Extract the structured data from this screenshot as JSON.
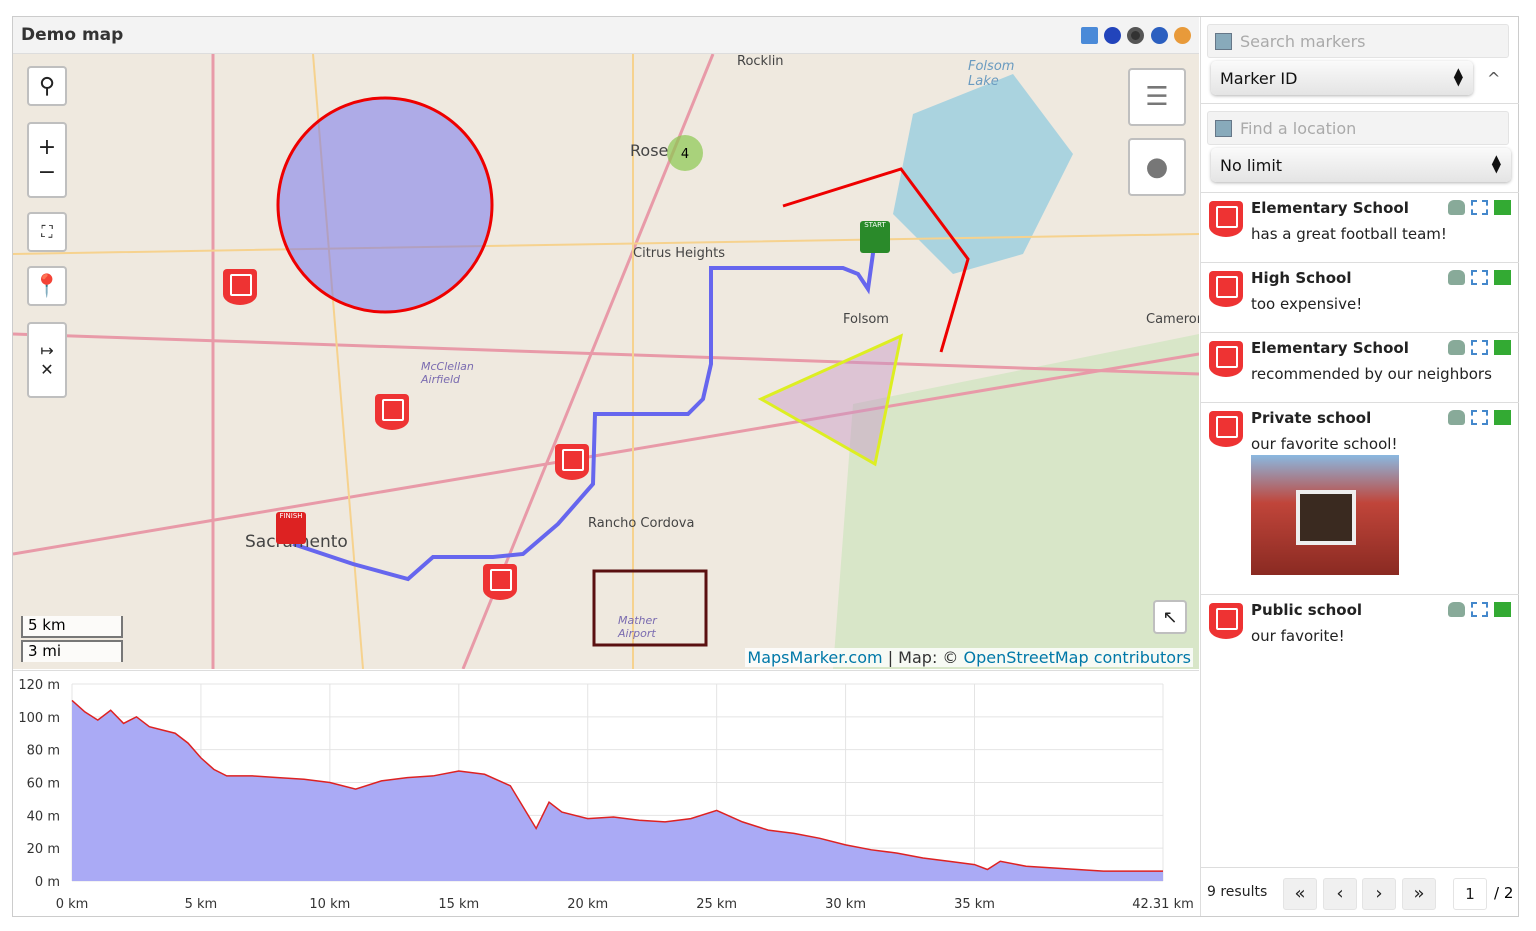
{
  "header": {
    "title": "Demo map",
    "icons": [
      "fullscreen-icon",
      "gpx-icon",
      "kml-icon",
      "google-earth-icon",
      "georss-icon"
    ]
  },
  "map": {
    "places": [
      "Rocklin",
      "Rose",
      "Citrus Heights",
      "Folsom",
      "Folsom Lake",
      "Cameron",
      "McClellan Airfield",
      "Rancho Cordova",
      "Sacramento",
      "Mather Airport"
    ],
    "cluster_count": "4",
    "scale": {
      "metric": "5 km",
      "imperial": "3 mi"
    },
    "attribution": {
      "brand": "MapsMarker.com",
      "sep": " | Map: © ",
      "osm": "OpenStreetMap contributors"
    },
    "route_markers": {
      "start": "START",
      "finish": "FINISH"
    },
    "colors": {
      "route": "#6666ee",
      "circle": "#e00000",
      "triangle": "#ddee22",
      "marker": "#e33333"
    }
  },
  "sidebar": {
    "search_placeholder": "Search markers",
    "sort_select": "Marker ID",
    "location_placeholder": "Find a location",
    "radius_select": "No limit",
    "items": [
      {
        "title": "Elementary School",
        "desc": "has a great football team!"
      },
      {
        "title": "High School",
        "desc": "too expensive!"
      },
      {
        "title": "Elementary School",
        "desc": "recommended by our neighbors"
      },
      {
        "title": "Private school",
        "desc": "our favorite school!"
      },
      {
        "title": "Public school",
        "desc": "our favorite!"
      }
    ],
    "results": "9 results",
    "pager": {
      "first": "«",
      "prev": "‹",
      "next": "›",
      "last": "»",
      "page": "1",
      "total": "/ 2"
    }
  },
  "chart_data": {
    "type": "area",
    "xlabel": "",
    "ylabel": "",
    "x_ticks": [
      "0 km",
      "5 km",
      "10 km",
      "15 km",
      "20 km",
      "25 km",
      "30 km",
      "35 km",
      "42.31 km"
    ],
    "y_ticks": [
      "0 m",
      "20 m",
      "40 m",
      "60 m",
      "80 m",
      "100 m",
      "120 m"
    ],
    "xlim": [
      0,
      42.31
    ],
    "ylim": [
      0,
      120
    ],
    "x": [
      0,
      0.5,
      1,
      1.5,
      2,
      2.5,
      3,
      3.5,
      4,
      4.5,
      5,
      5.5,
      6,
      7,
      8,
      9,
      10,
      11,
      12,
      13,
      14,
      15,
      16,
      17,
      17.5,
      18,
      18.5,
      19,
      20,
      21,
      22,
      23,
      24,
      25,
      26,
      27,
      28,
      29,
      30,
      31,
      32,
      33,
      34,
      35,
      35.5,
      36,
      37,
      38,
      39,
      40,
      41,
      42.31
    ],
    "y": [
      110,
      103,
      98,
      104,
      96,
      100,
      94,
      92,
      90,
      84,
      75,
      68,
      64,
      64,
      63,
      62,
      60,
      56,
      61,
      63,
      64,
      67,
      65,
      58,
      45,
      32,
      48,
      42,
      38,
      39,
      37,
      36,
      38,
      43,
      36,
      31,
      29,
      26,
      22,
      19,
      17,
      14,
      12,
      10,
      7,
      12,
      9,
      8,
      7,
      6,
      6,
      6
    ],
    "fill": "#aaaaf5",
    "line": "#dd2222",
    "grid": true
  }
}
